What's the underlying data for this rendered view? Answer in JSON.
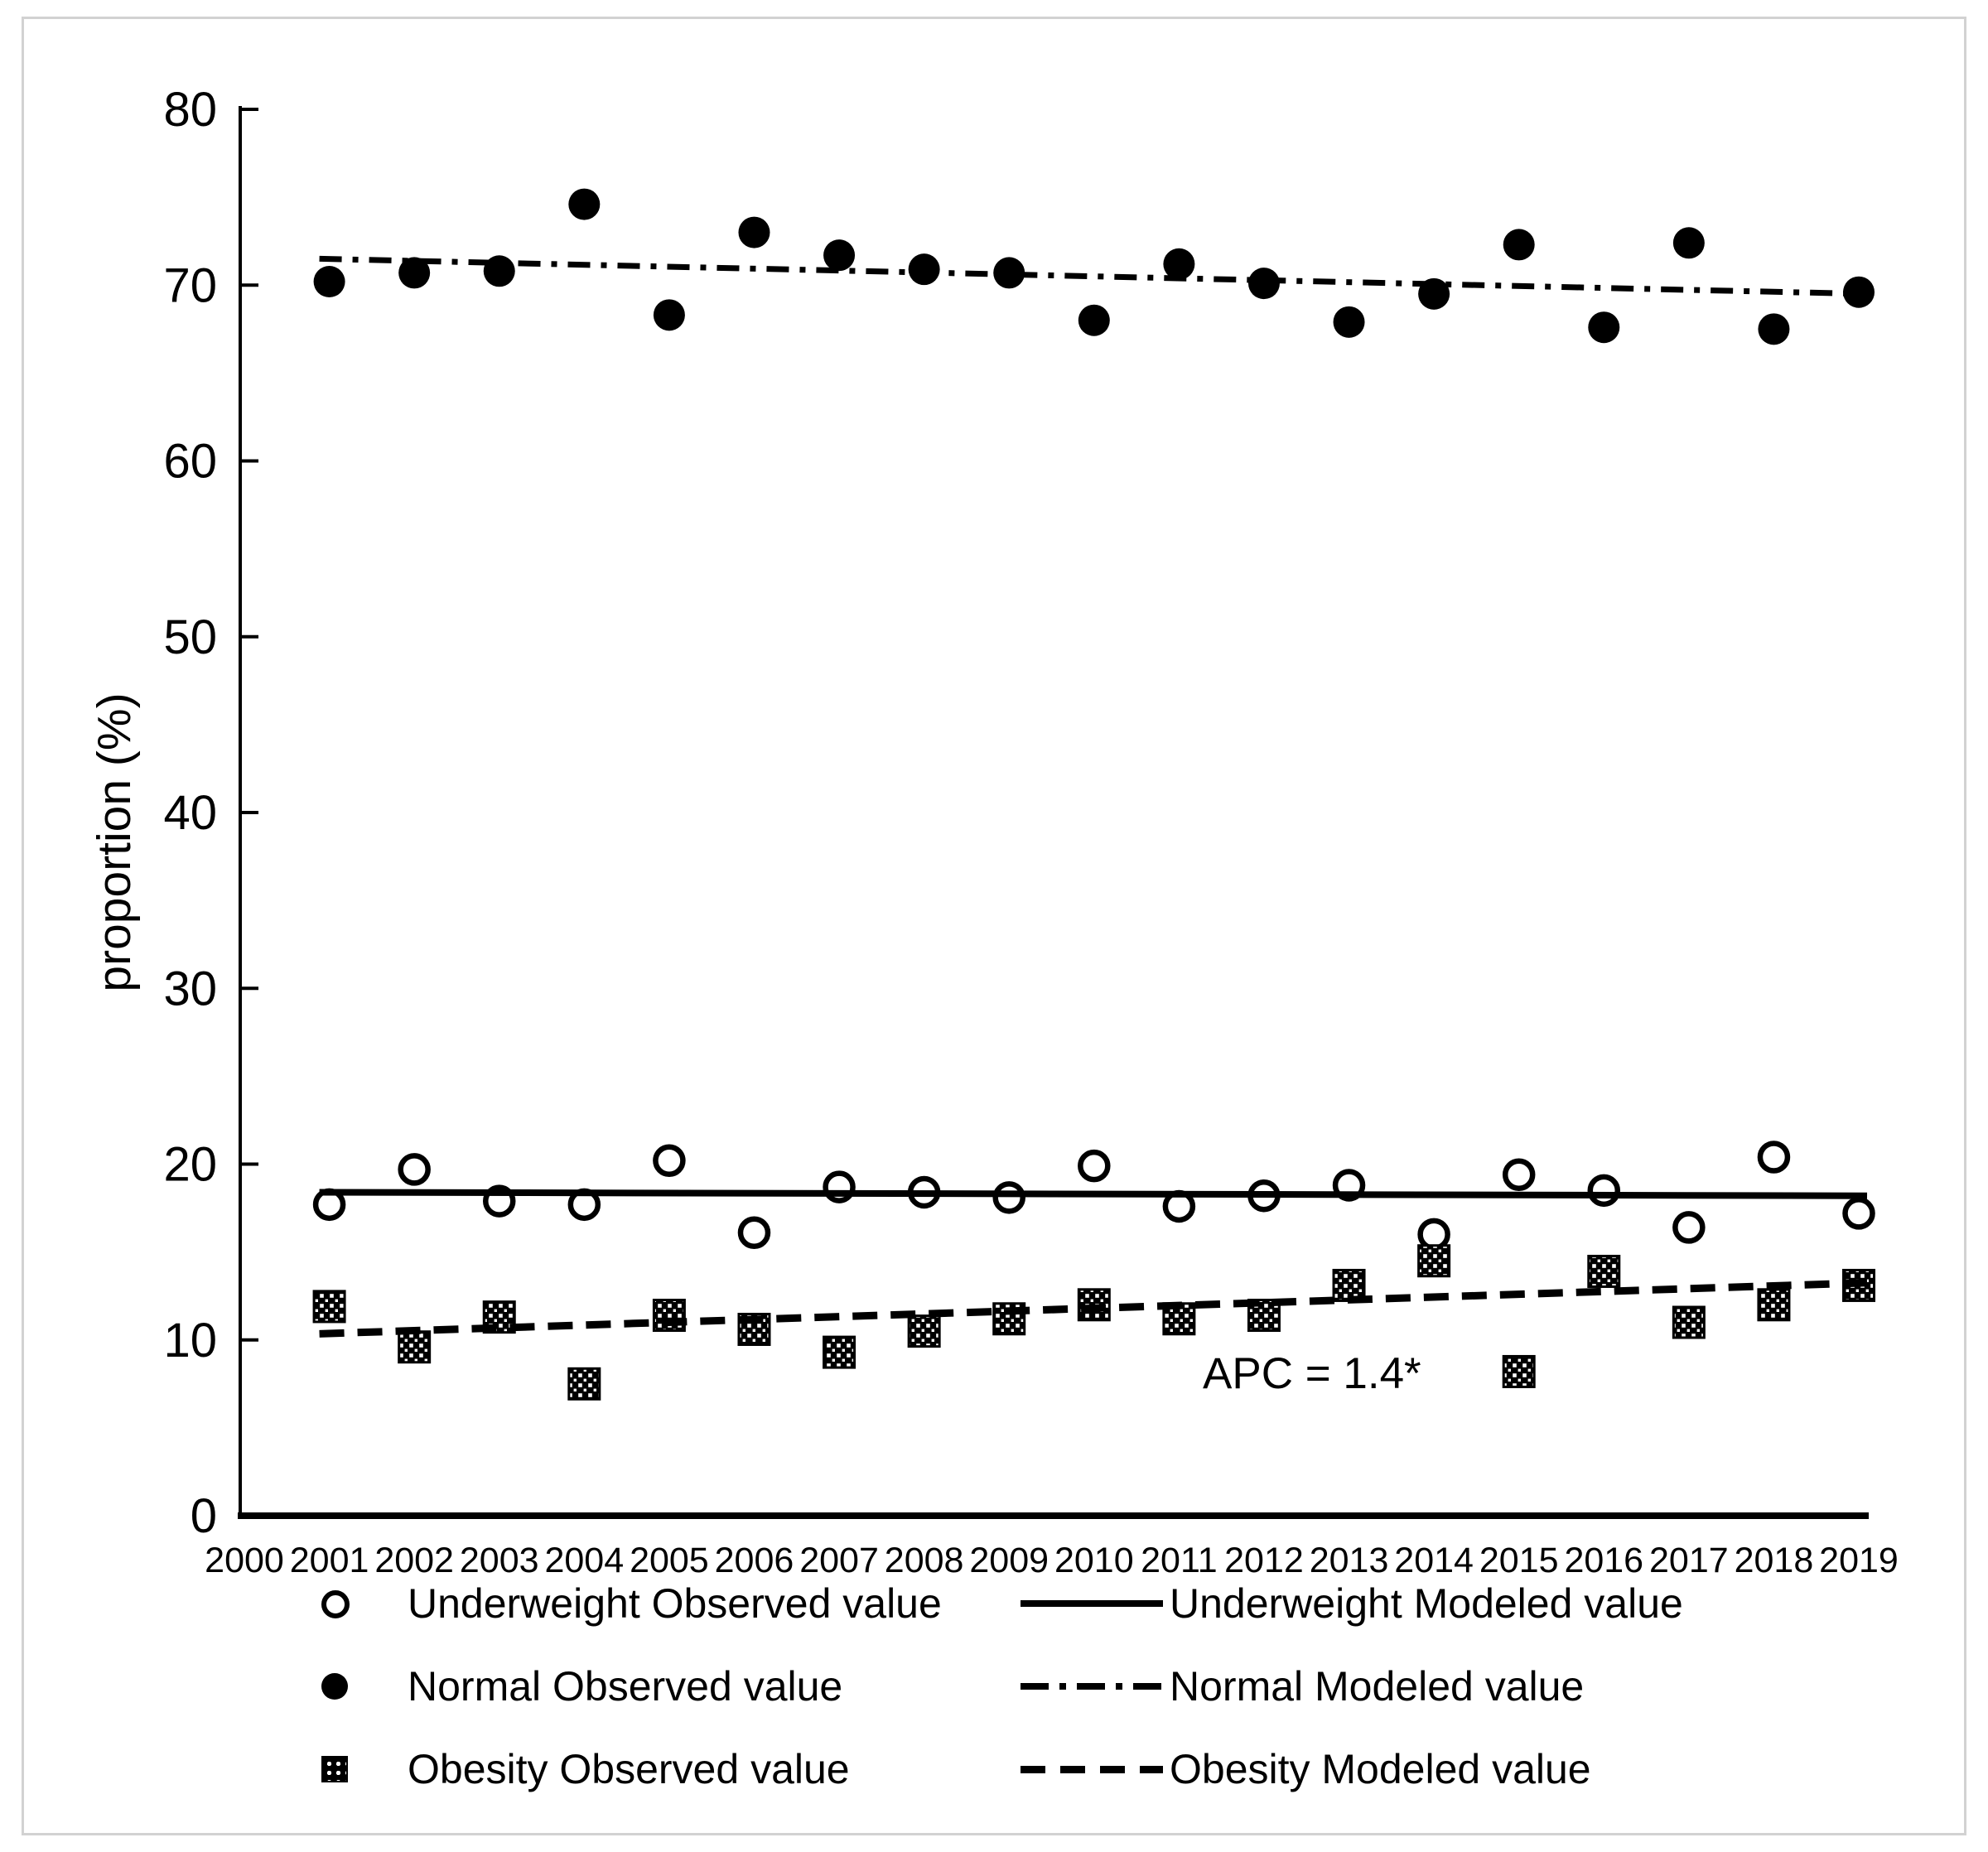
{
  "figure": {
    "background": "#ffffff",
    "border_color": "#d2d2d2",
    "ink_color": "#000000"
  },
  "annotation": {
    "text": "APC = 1.4*"
  },
  "legend": {
    "rows": [
      {
        "marker": "open-circle",
        "observed": "Underweight Observed value",
        "line": "solid",
        "modeled": "Underweight Modeled value"
      },
      {
        "marker": "filled-circle",
        "observed": "Normal Observed value",
        "line": "dash-dot",
        "modeled": "Normal Modeled value"
      },
      {
        "marker": "pattern-square",
        "observed": "Obesity Observed value",
        "line": "dashed",
        "modeled": "Obesity Modeled value"
      }
    ]
  },
  "chart_data": {
    "type": "scatter",
    "title": "",
    "xlabel": "",
    "ylabel": "proportion (%)",
    "ylim": [
      0,
      80
    ],
    "y_ticks": [
      0,
      10,
      20,
      30,
      40,
      50,
      60,
      70,
      80
    ],
    "x_axis_years": [
      2000,
      2001,
      2002,
      2003,
      2004,
      2005,
      2006,
      2007,
      2008,
      2009,
      2010,
      2011,
      2012,
      2013,
      2014,
      2015,
      2016,
      2017,
      2018,
      2019
    ],
    "x": [
      2001,
      2002,
      2003,
      2004,
      2005,
      2006,
      2007,
      2008,
      2009,
      2010,
      2011,
      2012,
      2013,
      2014,
      2015,
      2016,
      2017,
      2018,
      2019
    ],
    "grid": false,
    "legend_position": "bottom",
    "series": [
      {
        "name": "Underweight Observed value",
        "kind": "marker",
        "marker": "open-circle",
        "values": [
          17.7,
          19.7,
          17.9,
          17.7,
          20.2,
          16.1,
          18.7,
          18.4,
          18.1,
          19.9,
          17.6,
          18.2,
          18.8,
          16.0,
          19.4,
          18.5,
          16.4,
          20.4,
          17.2
        ]
      },
      {
        "name": "Underweight Modeled value",
        "kind": "line",
        "line": "solid",
        "x_span": [
          2001,
          2019
        ],
        "endpoints": [
          18.4,
          18.2
        ]
      },
      {
        "name": "Normal Observed value",
        "kind": "marker",
        "marker": "filled-circle",
        "values": [
          70.2,
          70.7,
          70.8,
          74.6,
          68.3,
          73.0,
          71.7,
          70.9,
          70.7,
          68.0,
          71.2,
          70.1,
          67.9,
          69.5,
          72.3,
          67.6,
          72.4,
          67.5,
          69.6
        ]
      },
      {
        "name": "Normal Modeled value",
        "kind": "line",
        "line": "dash-dot",
        "x_span": [
          2001,
          2019
        ],
        "endpoints": [
          71.5,
          69.5
        ]
      },
      {
        "name": "Obesity Observed value",
        "kind": "marker",
        "marker": "pattern-square",
        "values": [
          11.9,
          9.6,
          11.3,
          7.5,
          11.4,
          10.6,
          9.3,
          10.5,
          11.2,
          12.0,
          11.2,
          11.4,
          13.1,
          14.5,
          8.2,
          13.9,
          11.0,
          12.0,
          13.1
        ]
      },
      {
        "name": "Obesity Modeled value",
        "kind": "line",
        "line": "dashed",
        "x_span": [
          2001,
          2019
        ],
        "endpoints": [
          10.35,
          13.25
        ],
        "annotation": "APC = 1.4*"
      }
    ]
  }
}
